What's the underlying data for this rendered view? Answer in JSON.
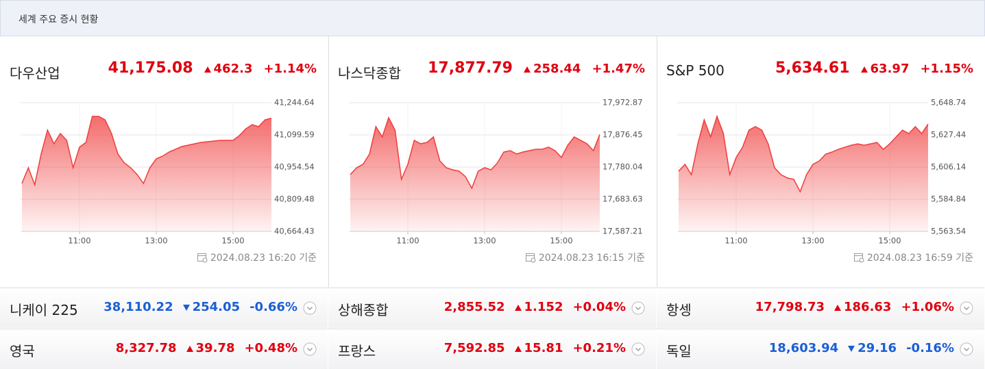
{
  "header": {
    "title": "세계 주요 증시 현황"
  },
  "main": [
    {
      "name": "다우산업",
      "price": "41,175.08",
      "change": "462.3",
      "change_pct": "+1.14%",
      "timestamp": "2024.08.23 16:20 기준"
    },
    {
      "name": "나스닥종합",
      "price": "17,877.79",
      "change": "258.44",
      "change_pct": "+1.47%",
      "timestamp": "2024.08.23 16:15 기준"
    },
    {
      "name": "S&P 500",
      "price": "5,634.61",
      "change": "63.97",
      "change_pct": "+1.15%",
      "timestamp": "2024.08.23 16:59 기준"
    }
  ],
  "others": [
    {
      "name": "니케이 225",
      "price": "38,110.22",
      "change": "254.05",
      "change_pct": "-0.66%"
    },
    {
      "name": "상해종합",
      "price": "2,855.52",
      "change": "1.152",
      "change_pct": "+0.04%"
    },
    {
      "name": "항셍",
      "price": "17,798.73",
      "change": "186.63",
      "change_pct": "+1.06%"
    },
    {
      "name": "영국",
      "price": "8,327.78",
      "change": "39.78",
      "change_pct": "+0.48%"
    },
    {
      "name": "프랑스",
      "price": "7,592.85",
      "change": "15.81",
      "change_pct": "+0.21%"
    },
    {
      "name": "독일",
      "price": "18,603.94",
      "change": "29.16",
      "change_pct": "-0.16%"
    }
  ],
  "chart_data": [
    {
      "type": "area",
      "color": "#f03c3c",
      "grid": true,
      "categories": [
        null,
        null,
        null,
        null,
        null,
        null,
        null,
        null,
        null,
        "11:00",
        null,
        null,
        null,
        null,
        null,
        null,
        null,
        null,
        null,
        null,
        null,
        "13:00",
        null,
        null,
        null,
        null,
        null,
        null,
        null,
        null,
        null,
        null,
        null,
        "15:00",
        null,
        null,
        null,
        null,
        null,
        null
      ],
      "values": [
        40880.5,
        40951.4,
        40874.3,
        41013.2,
        41121.2,
        41059.5,
        41105.8,
        41074.9,
        40951.4,
        41044.0,
        41065.6,
        41182.9,
        41182.9,
        41167.5,
        41105.8,
        41013.2,
        40973.0,
        40951.4,
        40920.6,
        40880.5,
        40951.4,
        40991.5,
        41003.9,
        41022.4,
        41034.8,
        41047.1,
        41053.3,
        41059.5,
        41065.6,
        41068.7,
        41071.8,
        41074.9,
        41074.9,
        41074.9,
        41096.5,
        41127.3,
        41145.8,
        41136.6,
        41167.5,
        41175.0
      ],
      "ylim": [
        40664.43,
        41244.64
      ],
      "yticks": [
        {
          "value": 40664.43,
          "label": "40,664.43"
        },
        {
          "value": 40809.48,
          "label": "40,809.48"
        },
        {
          "value": 40954.54,
          "label": "40,954.54"
        },
        {
          "value": 41099.59,
          "label": "41,099.59"
        },
        {
          "value": 41244.64,
          "label": "41,244.64"
        }
      ]
    },
    {
      "type": "area",
      "color": "#f03c3c",
      "grid": true,
      "categories": [
        null,
        null,
        null,
        null,
        null,
        null,
        null,
        null,
        null,
        "11:00",
        null,
        null,
        null,
        null,
        null,
        null,
        null,
        null,
        null,
        null,
        null,
        "13:00",
        null,
        null,
        null,
        null,
        null,
        null,
        null,
        null,
        null,
        null,
        null,
        "15:00",
        null,
        null,
        null,
        null,
        null,
        null
      ],
      "values": [
        17757.5,
        17778.1,
        17788.3,
        17819.1,
        17901.1,
        17870.3,
        17927.8,
        17890.9,
        17743.2,
        17788.3,
        17860.1,
        17849.8,
        17853.9,
        17870.3,
        17798.6,
        17778.1,
        17771.9,
        17767.8,
        17751.4,
        17716.5,
        17767.8,
        17778.1,
        17771.9,
        17792.4,
        17825.2,
        17829.3,
        17819.1,
        17825.2,
        17829.3,
        17833.4,
        17833.4,
        17839.6,
        17829.3,
        17808.8,
        17845.7,
        17870.3,
        17860.1,
        17849.8,
        17829.3,
        17877.8
      ],
      "ylim": [
        17587.21,
        17972.87
      ],
      "yticks": [
        {
          "value": 17587.21,
          "label": "17,587.21"
        },
        {
          "value": 17683.63,
          "label": "17,683.63"
        },
        {
          "value": 17780.04,
          "label": "17,780.04"
        },
        {
          "value": 17876.45,
          "label": "17,876.45"
        },
        {
          "value": 17972.87,
          "label": "17,972.87"
        }
      ]
    },
    {
      "type": "area",
      "color": "#f03c3c",
      "grid": true,
      "categories": [
        null,
        null,
        null,
        null,
        null,
        null,
        null,
        null,
        null,
        "11:00",
        null,
        null,
        null,
        null,
        null,
        null,
        null,
        null,
        null,
        null,
        null,
        "13:00",
        null,
        null,
        null,
        null,
        null,
        null,
        null,
        null,
        null,
        null,
        null,
        "15:00",
        null,
        null,
        null,
        null,
        null,
        null
      ],
      "values": [
        5603.4,
        5607.9,
        5601.1,
        5621.5,
        5637.4,
        5626.1,
        5639.7,
        5628.3,
        5601.1,
        5612.5,
        5619.3,
        5630.6,
        5632.9,
        5630.6,
        5621.5,
        5605.7,
        5601.1,
        5598.9,
        5598.0,
        5589.8,
        5601.1,
        5607.9,
        5610.2,
        5614.7,
        5616.1,
        5617.9,
        5619.3,
        5620.6,
        5621.5,
        5620.6,
        5621.5,
        5622.4,
        5617.9,
        5621.5,
        5626.1,
        5630.6,
        5628.3,
        5632.9,
        5628.3,
        5634.6
      ],
      "ylim": [
        5563.54,
        5648.74
      ],
      "yticks": [
        {
          "value": 5563.54,
          "label": "5,563.54"
        },
        {
          "value": 5584.84,
          "label": "5,584.84"
        },
        {
          "value": 5606.14,
          "label": "5,606.14"
        },
        {
          "value": 5627.44,
          "label": "5,627.44"
        },
        {
          "value": 5648.74,
          "label": "5,648.74"
        }
      ]
    }
  ]
}
